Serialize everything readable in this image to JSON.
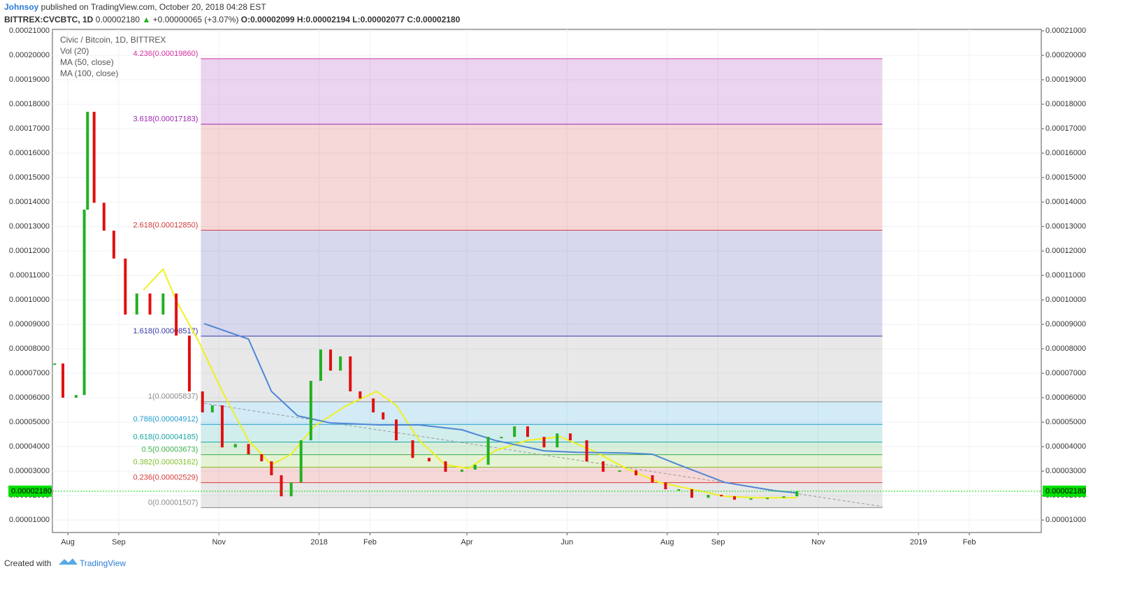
{
  "header": {
    "author": "Johnsoy",
    "published": " published on TradingView.com, October 20, 2018 04:28 EST",
    "symbol": "BITTREX:CVCBTC, 1D",
    "last": "0.00002180",
    "change": "+0.00000065 (+3.07%)",
    "open": "O:0.00002099",
    "high": "H:0.00002194",
    "low": "L:0.00002077",
    "close": "C:0.00002180"
  },
  "footer": {
    "created": "Created with",
    "brand": "TradingView"
  },
  "chart_data": {
    "type": "candle-line",
    "legend": [
      "Civic / Bitcoin, 1D, BITTREX",
      "Vol (20)",
      "MA (50, close)",
      "MA (100, close)"
    ],
    "xlim": [
      -9.4,
      592.8
    ],
    "xticks": [
      {
        "value": 0,
        "label": "Aug"
      },
      {
        "value": 31,
        "label": "Sep"
      },
      {
        "value": 92,
        "label": "Nov"
      },
      {
        "value": 153,
        "label": "2018"
      },
      {
        "value": 184,
        "label": "Feb"
      },
      {
        "value": 243,
        "label": "Apr"
      },
      {
        "value": 304,
        "label": "Jun"
      },
      {
        "value": 365,
        "label": "Aug"
      },
      {
        "value": 396,
        "label": "Sep"
      },
      {
        "value": 457,
        "label": "Nov"
      },
      {
        "value": 518,
        "label": "2019"
      },
      {
        "value": 549,
        "label": "Feb"
      }
    ],
    "ylim": [
      4.9e-06,
      0.0002106
    ],
    "yticks": [
      {
        "value": 1e-05,
        "label": "0.00001000"
      },
      {
        "value": 2e-05,
        "label": "0.00002000"
      },
      {
        "value": 3e-05,
        "label": "0.00003000"
      },
      {
        "value": 4e-05,
        "label": "0.00004000"
      },
      {
        "value": 5e-05,
        "label": "0.00005000"
      },
      {
        "value": 6e-05,
        "label": "0.00006000"
      },
      {
        "value": 7e-05,
        "label": "0.00007000"
      },
      {
        "value": 8e-05,
        "label": "0.00008000"
      },
      {
        "value": 9e-05,
        "label": "0.00009000"
      },
      {
        "value": 0.0001,
        "label": "0.00010000"
      },
      {
        "value": 0.00011,
        "label": "0.00011000"
      },
      {
        "value": 0.00012,
        "label": "0.00012000"
      },
      {
        "value": 0.00013,
        "label": "0.00013000"
      },
      {
        "value": 0.00014,
        "label": "0.00014000"
      },
      {
        "value": 0.00015,
        "label": "0.00015000"
      },
      {
        "value": 0.00016,
        "label": "0.00016000"
      },
      {
        "value": 0.00017,
        "label": "0.00017000"
      },
      {
        "value": 0.00018,
        "label": "0.00018000"
      },
      {
        "value": 0.00019,
        "label": "0.00019000"
      },
      {
        "value": 0.0002,
        "label": "0.00020000"
      },
      {
        "value": 0.00021,
        "label": "0.00021000"
      }
    ],
    "grid": true,
    "up_color": "#22b022",
    "down_color": "#e01010",
    "x": [
      -8,
      -3,
      5,
      10,
      12,
      16,
      22,
      28,
      35,
      42,
      50,
      58,
      66,
      74,
      82,
      88,
      94,
      102,
      110,
      118,
      124,
      130,
      136,
      142,
      148,
      154,
      160,
      166,
      172,
      178,
      186,
      192,
      200,
      210,
      220,
      230,
      240,
      248,
      256,
      264,
      272,
      280,
      290,
      298,
      306,
      316,
      326,
      336,
      346,
      356,
      364,
      372,
      380,
      390,
      398,
      406,
      416,
      426,
      436,
      444
    ],
    "series": [
      {
        "name": "Close",
        "color": "#e01010",
        "values": [
          7.4e-05,
          6e-05,
          6.11e-05,
          0.0001369,
          0.0001769,
          0.0001397,
          0.0001283,
          0.0001169,
          9.4e-05,
          0.0001026,
          9.4e-05,
          0.0001026,
          8.54e-05,
          6.26e-05,
          5.4e-05,
          5.69e-05,
          3.97e-05,
          4.11e-05,
          3.69e-05,
          3.4e-05,
          2.83e-05,
          1.97e-05,
          2.54e-05,
          4.26e-05,
          6.69e-05,
          7.97e-05,
          7.11e-05,
          7.69e-05,
          6.26e-05,
          5.97e-05,
          5.4e-05,
          5.11e-05,
          4.26e-05,
          3.54e-05,
          3.4e-05,
          2.97e-05,
          3.06e-05,
          3.26e-05,
          4.4e-05,
          4.4e-05,
          4.83e-05,
          4.4e-05,
          3.97e-05,
          4.54e-05,
          4.26e-05,
          3.4e-05,
          2.97e-05,
          3.03e-05,
          2.83e-05,
          2.54e-05,
          2.26e-05,
          2.26e-05,
          1.91e-05,
          2.03e-05,
          1.97e-05,
          1.83e-05,
          1.89e-05,
          1.91e-05,
          1.97e-05,
          2.18e-05
        ]
      }
    ],
    "moving_averages": [
      {
        "name": "MA (50, close)",
        "color": "#f0f020",
        "x": [
          46,
          58,
          66,
          80,
          94,
          110,
          124,
          136,
          150,
          170,
          188,
          200,
          214,
          230,
          244,
          260,
          280,
          300,
          320,
          340,
          360,
          380,
          400,
          420,
          444
        ],
        "values": [
          0.000104,
          0.0001126,
          9.97e-05,
          8.26e-05,
          6.26e-05,
          4.26e-05,
          3.26e-05,
          3.69e-05,
          4.83e-05,
          5.69e-05,
          6.26e-05,
          5.69e-05,
          4.26e-05,
          3.26e-05,
          3.11e-05,
          3.83e-05,
          4.26e-05,
          4.4e-05,
          3.83e-05,
          3.11e-05,
          2.54e-05,
          2.26e-05,
          1.97e-05,
          1.91e-05,
          1.91e-05
        ]
      },
      {
        "name": "MA (100, close)",
        "color": "#4f86d6",
        "x": [
          83,
          110,
          124,
          140,
          160,
          190,
          214,
          240,
          260,
          290,
          310,
          340,
          356,
          372,
          400,
          430,
          444
        ],
        "values": [
          9.03e-05,
          8.4e-05,
          6.26e-05,
          5.26e-05,
          4.97e-05,
          4.89e-05,
          4.89e-05,
          4.69e-05,
          4.26e-05,
          3.83e-05,
          3.77e-05,
          3.74e-05,
          3.69e-05,
          3.26e-05,
          2.54e-05,
          2.2e-05,
          2.11e-05
        ]
      }
    ],
    "trendline": {
      "x": [
        83,
        496
      ],
      "values": [
        5.77e-05,
        1.55e-05
      ],
      "color": "#999999"
    },
    "fib": {
      "x": [
        81,
        496
      ],
      "levels": [
        {
          "label": "4.236(0.00019860)",
          "value": 0.0001986,
          "color": "#d62ea0"
        },
        {
          "label": "3.618(0.00017183)",
          "value": 0.00017183,
          "color": "#9c27b0"
        },
        {
          "label": "2.618(0.00012850)",
          "value": 0.0001285,
          "color": "#d63a3a"
        },
        {
          "label": "1.618(0.00008517)",
          "value": 8.517e-05,
          "color": "#3636a8"
        },
        {
          "label": "1(0.00005837)",
          "value": 5.837e-05,
          "color": "#8a8a8a"
        },
        {
          "label": "0.786(0.00004912)",
          "value": 4.912e-05,
          "color": "#1e9bd0"
        },
        {
          "label": "0.618(0.00004185)",
          "value": 4.185e-05,
          "color": "#17a6a0"
        },
        {
          "label": "0.5(0.00003673)",
          "value": 3.673e-05,
          "color": "#3fae49"
        },
        {
          "label": "0.382(0.00003162)",
          "value": 3.162e-05,
          "color": "#7dbf2a"
        },
        {
          "label": "0.236(0.00002529)",
          "value": 2.529e-05,
          "color": "#d63a3a"
        },
        {
          "label": "0(0.00001507)",
          "value": 1.507e-05,
          "color": "#8a8a8a"
        }
      ]
    },
    "last_price": {
      "value": 2.18e-05,
      "label": "0.00002180",
      "color": "#00e000"
    }
  }
}
